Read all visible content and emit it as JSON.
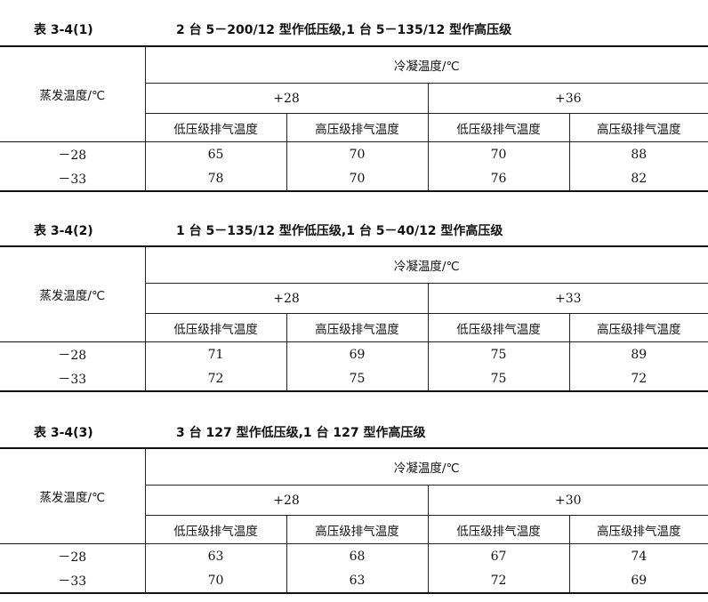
{
  "tables": [
    {
      "number": "表 3-4(1)",
      "title": "2 台 5－200/12 型作低压级,1 台 5－135/12 型作高压级",
      "row_header": "蒸发温度/℃",
      "group_header": "冷凝温度/℃",
      "condensing": [
        "+28",
        "+36"
      ],
      "columns": [
        "低压级排气温度",
        "高压级排气温度",
        "低压级排气温度",
        "高压级排气温度"
      ],
      "rows": [
        {
          "evap": "－28",
          "values": [
            "65",
            "70",
            "70",
            "88"
          ]
        },
        {
          "evap": "－33",
          "values": [
            "78",
            "70",
            "76",
            "82"
          ]
        }
      ]
    },
    {
      "number": "表 3-4(2)",
      "title": "1 台 5－135/12 型作低压级,1 台 5－40/12 型作高压级",
      "row_header": "蒸发温度/℃",
      "group_header": "冷凝温度/℃",
      "condensing": [
        "+28",
        "+33"
      ],
      "columns": [
        "低压级排气温度",
        "高压级排气温度",
        "低压级排气温度",
        "高压级排气温度"
      ],
      "rows": [
        {
          "evap": "－28",
          "values": [
            "71",
            "69",
            "75",
            "89"
          ]
        },
        {
          "evap": "－33",
          "values": [
            "72",
            "75",
            "75",
            "72"
          ]
        }
      ]
    },
    {
      "number": "表 3-4(3)",
      "title": "3 台 127 型作低压级,1 台 127 型作高压级",
      "row_header": "蒸发温度/℃",
      "group_header": "冷凝温度/℃",
      "condensing": [
        "+28",
        "+30"
      ],
      "columns": [
        "低压级排气温度",
        "高压级排气温度",
        "低压级排气温度",
        "高压级排气温度"
      ],
      "rows": [
        {
          "evap": "－28",
          "values": [
            "63",
            "68",
            "67",
            "74"
          ]
        },
        {
          "evap": "－33",
          "values": [
            "70",
            "63",
            "72",
            "69"
          ]
        }
      ]
    }
  ]
}
